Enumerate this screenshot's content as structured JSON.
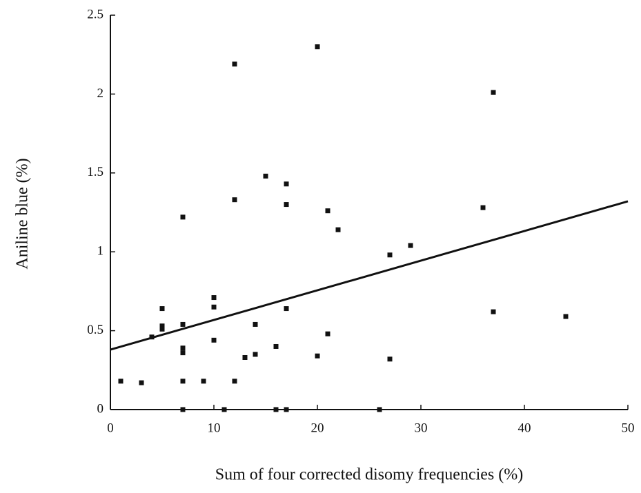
{
  "chart_data": {
    "type": "scatter",
    "xlabel": "Sum of four corrected disomy frequencies (%)",
    "ylabel": "Aniline blue (%)",
    "xlim": [
      0,
      50
    ],
    "xticks": [
      0,
      10,
      20,
      30,
      40,
      50
    ],
    "ylim": [
      0,
      2.5
    ],
    "yticks": [
      0,
      0.5,
      1,
      1.5,
      2,
      2.5
    ],
    "color": "#111111",
    "x": [
      1,
      3,
      4,
      5,
      5,
      5,
      7,
      7,
      7,
      7,
      7,
      7,
      9,
      10,
      10,
      10,
      11,
      12,
      12,
      12,
      13,
      14,
      14,
      15,
      16,
      16,
      17,
      17,
      17,
      17,
      20,
      20,
      21,
      21,
      22,
      26,
      27,
      27,
      29,
      36,
      37,
      37,
      44
    ],
    "y": [
      0.18,
      0.17,
      0.46,
      0.64,
      0.53,
      0.51,
      1.22,
      0.54,
      0.39,
      0.36,
      0.18,
      0,
      0.18,
      0.71,
      0.65,
      0.44,
      0,
      2.19,
      1.33,
      0.18,
      0.33,
      0.54,
      0.35,
      1.48,
      0.4,
      0,
      1.43,
      1.3,
      0.64,
      0,
      2.3,
      0.34,
      1.26,
      0.48,
      1.14,
      0,
      0.98,
      0.32,
      1.04,
      1.28,
      2.01,
      0.62,
      0.59
    ],
    "trend_line": {
      "x": [
        0,
        50
      ],
      "y": [
        0.38,
        1.32
      ]
    }
  }
}
